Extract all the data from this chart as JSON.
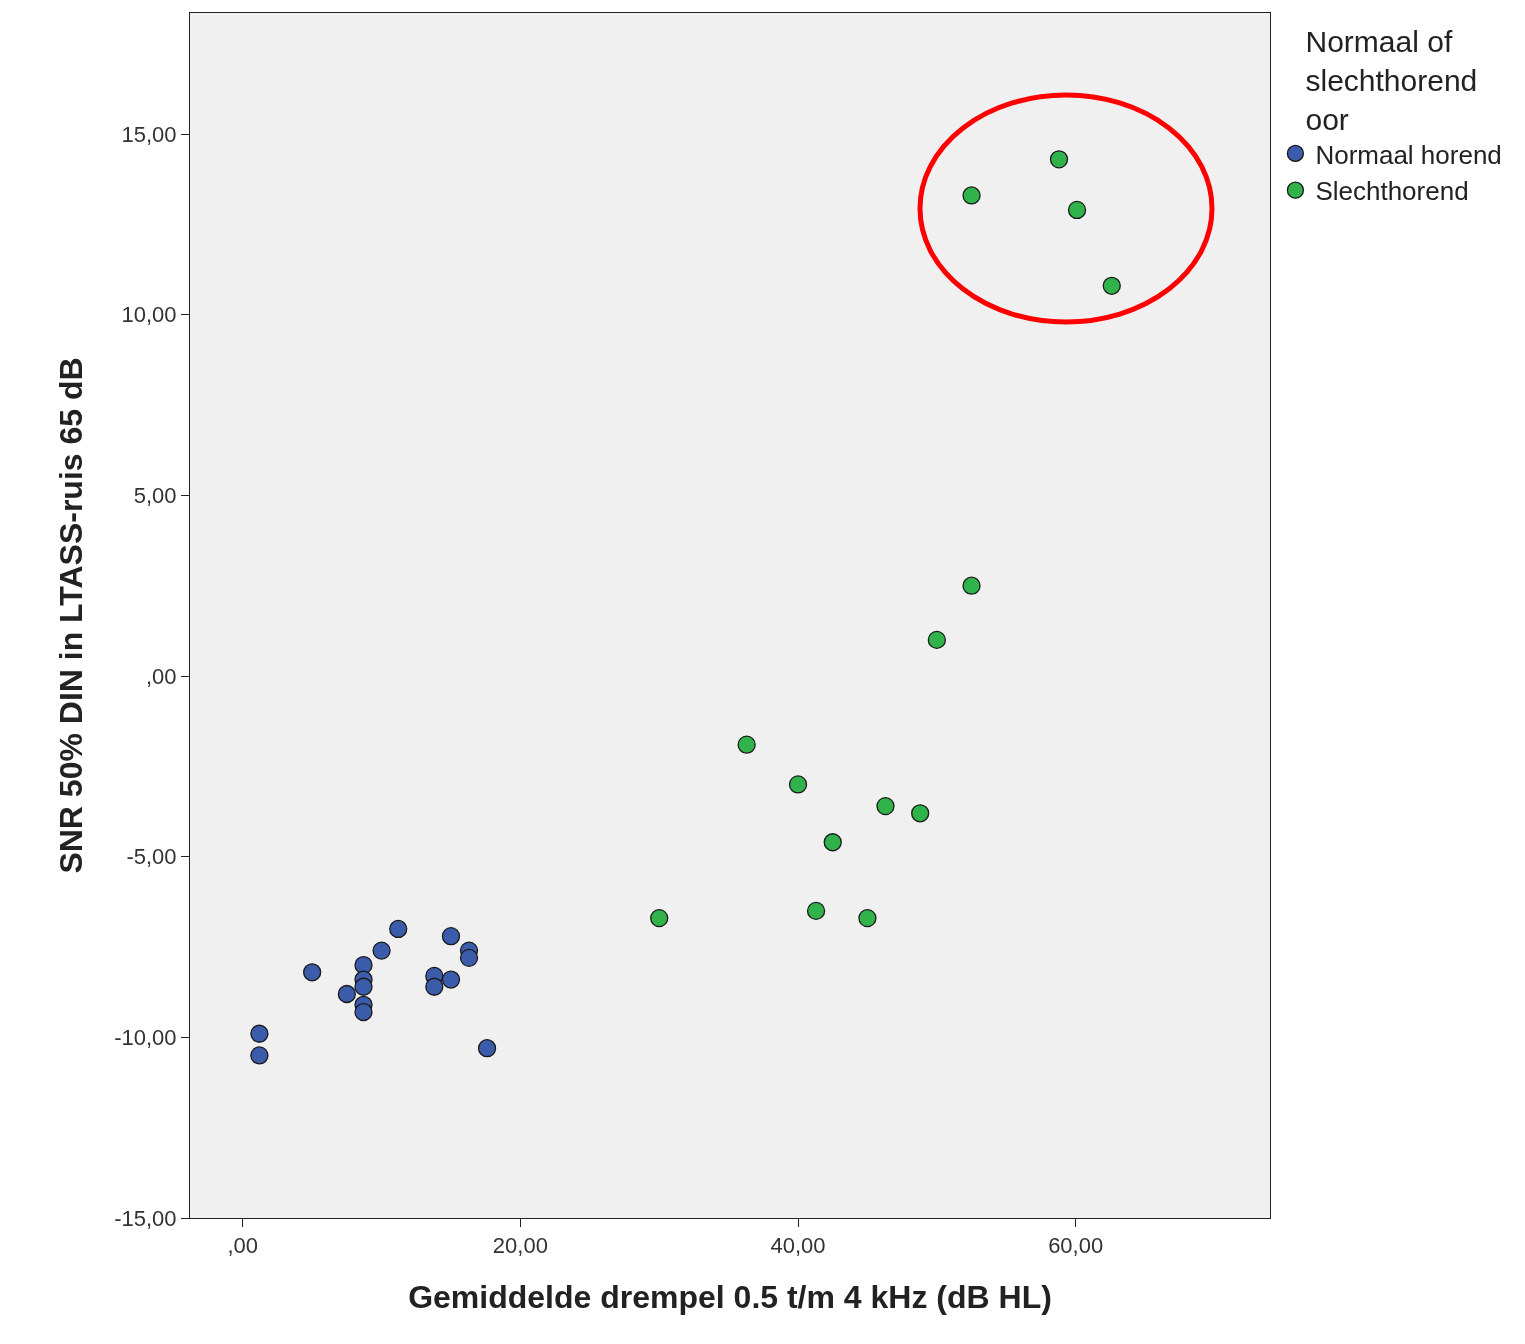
{
  "chart_data": {
    "type": "scatter",
    "xlabel": "Gemiddelde drempel 0.5 t/m 4 kHz (dB HL)",
    "ylabel": "SNR 50% DIN in LTASS-ruis 65 dB",
    "legend_title": "Normaal of\nslechthorend\noor",
    "xlim": [
      -3.8,
      74.0
    ],
    "ylim": [
      -15,
      18.35
    ],
    "xticks": [
      {
        "value": 0,
        "label": ",00"
      },
      {
        "value": 20,
        "label": "20,00"
      },
      {
        "value": 40,
        "label": "40,00"
      },
      {
        "value": 60,
        "label": "60,00"
      }
    ],
    "yticks": [
      {
        "value": -15,
        "label": "-15,00"
      },
      {
        "value": -10,
        "label": "-10,00"
      },
      {
        "value": -5,
        "label": "-5,00"
      },
      {
        "value": 0,
        "label": ",00"
      },
      {
        "value": 5,
        "label": "5,00"
      },
      {
        "value": 10,
        "label": "10,00"
      },
      {
        "value": 15,
        "label": "15,00"
      }
    ],
    "grid": false,
    "legend": "top right",
    "marker": "circle",
    "series": [
      {
        "name": "Normaal horend",
        "color": "#3b5bab",
        "x": [
          1.2,
          1.2,
          5.0,
          7.5,
          8.7,
          8.7,
          8.7,
          8.7,
          8.7,
          10.0,
          11.2,
          13.8,
          13.8,
          15.0,
          15.0,
          16.3,
          16.3,
          17.6
        ],
        "values": [
          -9.9,
          -10.5,
          -8.2,
          -8.8,
          -8.0,
          -8.4,
          -8.6,
          -9.1,
          -9.3,
          -7.6,
          -7.0,
          -8.3,
          -8.6,
          -7.2,
          -8.4,
          -7.6,
          -7.8,
          -10.3
        ]
      },
      {
        "name": "Slechthorend",
        "color": "#2fb34a",
        "x": [
          30.0,
          36.3,
          40.0,
          41.3,
          42.5,
          45.0,
          46.3,
          48.8,
          50.0,
          52.5,
          52.5,
          58.8,
          60.1,
          62.6
        ],
        "values": [
          -6.7,
          -1.9,
          -3.0,
          -6.5,
          -4.6,
          -6.7,
          -3.6,
          -3.8,
          1.0,
          2.5,
          13.3,
          14.3,
          12.9,
          10.8
        ]
      }
    ]
  }
}
